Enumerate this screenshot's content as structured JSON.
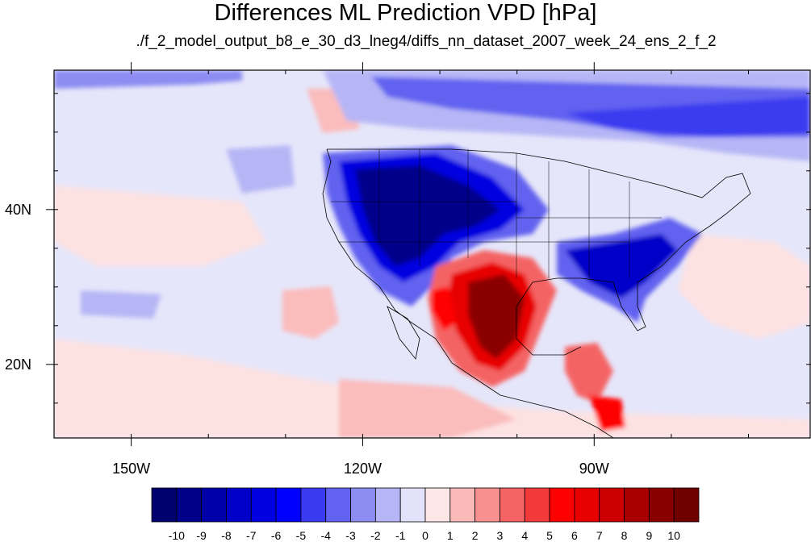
{
  "title": "Differences ML Prediction VPD [hPa]",
  "subtitle": "./f_2_model_output_b8_e_30_d3_lneg4/diffs_nn_dataset_2007_week_24_ens_2_f_2",
  "map": {
    "projection": "cylindrical equidistant",
    "lon_range": [
      -160,
      -62
    ],
    "lat_range": [
      10.5,
      58
    ],
    "lon_tick_labels": [
      {
        "value": -150,
        "label": "150W"
      },
      {
        "value": -120,
        "label": "120W"
      },
      {
        "value": -90,
        "label": "90W"
      }
    ],
    "lat_tick_labels": [
      {
        "value": 40,
        "label": "40N"
      },
      {
        "value": 20,
        "label": "20N"
      }
    ],
    "overlays": [
      "coastlines",
      "country boundaries",
      "US state boundaries"
    ]
  },
  "colorbar": {
    "levels": [
      "-10",
      "-9",
      "-8",
      "-7",
      "-6",
      "-5",
      "-4",
      "-3",
      "-2",
      "-1",
      "0",
      "1",
      "2",
      "3",
      "4",
      "5",
      "6",
      "7",
      "8",
      "9",
      "10"
    ],
    "colors": [
      "#00006e",
      "#00008a",
      "#0000a8",
      "#0000c8",
      "#0000e0",
      "#0000ff",
      "#3a3af0",
      "#6262f0",
      "#8c8cf2",
      "#b6b6f6",
      "#e2e2fa",
      "#fde6e6",
      "#fbbaba",
      "#f89090",
      "#f46464",
      "#f23a3a",
      "#ff0000",
      "#e80000",
      "#cc0000",
      "#a80000",
      "#8a0000",
      "#6e0000"
    ]
  }
}
